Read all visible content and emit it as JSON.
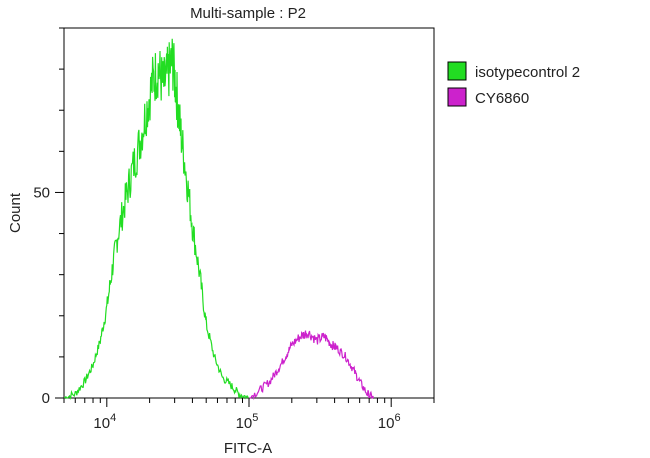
{
  "chart_data": {
    "type": "line",
    "title": "Multi-sample : P2",
    "xlabel": "FITC-A",
    "ylabel": "Count",
    "xscale": "log",
    "xlim": [
      5000,
      2000000
    ],
    "ylim": [
      0,
      90
    ],
    "yticks": [
      {
        "value": 0,
        "label": "0"
      },
      {
        "value": 50,
        "label": "50"
      }
    ],
    "xticks": [
      {
        "value": 10000,
        "base": "10",
        "exp": "4"
      },
      {
        "value": 100000,
        "base": "10",
        "exp": "5"
      },
      {
        "value": 1000000,
        "base": "10",
        "exp": "6"
      }
    ],
    "grid": false,
    "legend_position": "right",
    "series": [
      {
        "name": "isotypecontrol 2",
        "color": "#22dd22",
        "x": [
          5000,
          6000,
          7000,
          8000,
          9000,
          10000,
          11000,
          12000,
          13500,
          15000,
          17000,
          19000,
          21000,
          23000,
          25000,
          27000,
          29000,
          31000,
          33000,
          36000,
          40000,
          45000,
          50000,
          57000,
          65000,
          75000,
          85000,
          100000
        ],
        "y": [
          0,
          1,
          4,
          8,
          14,
          22,
          32,
          40,
          48,
          55,
          62,
          70,
          77,
          80,
          76,
          79,
          82,
          74,
          65,
          55,
          42,
          30,
          18,
          10,
          5,
          3,
          1,
          0
        ]
      },
      {
        "name": "CY6860",
        "color": "#cc22cc",
        "x": [
          100000,
          120000,
          140000,
          160000,
          180000,
          200000,
          230000,
          260000,
          300000,
          340000,
          380000,
          420000,
          480000,
          540000,
          600000,
          680000,
          750000
        ],
        "y": [
          0,
          2,
          4,
          7,
          10,
          13,
          15,
          16,
          14,
          15,
          13,
          12,
          10,
          7,
          4,
          1,
          0
        ]
      }
    ]
  }
}
